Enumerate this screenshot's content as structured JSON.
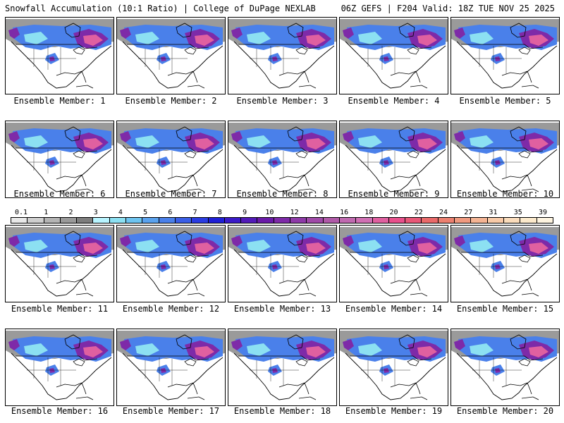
{
  "header": {
    "title_left": "Snowfall Accumulation (10:1 Ratio) | College of DuPage NEXLAB",
    "title_right": "06Z GEFS | F204 Valid: 18Z TUE NOV 25 2025"
  },
  "members": [
    {
      "label": "Ensemble Member: 1"
    },
    {
      "label": "Ensemble Member: 2"
    },
    {
      "label": "Ensemble Member: 3"
    },
    {
      "label": "Ensemble Member: 4"
    },
    {
      "label": "Ensemble Member: 5"
    },
    {
      "label": "Ensemble Member: 6"
    },
    {
      "label": "Ensemble Member: 7"
    },
    {
      "label": "Ensemble Member: 8"
    },
    {
      "label": "Ensemble Member: 9"
    },
    {
      "label": "Ensemble Member: 10"
    },
    {
      "label": "Ensemble Member: 11"
    },
    {
      "label": "Ensemble Member: 12"
    },
    {
      "label": "Ensemble Member: 13"
    },
    {
      "label": "Ensemble Member: 14"
    },
    {
      "label": "Ensemble Member: 15"
    },
    {
      "label": "Ensemble Member: 16"
    },
    {
      "label": "Ensemble Member: 17"
    },
    {
      "label": "Ensemble Member: 18"
    },
    {
      "label": "Ensemble Member: 19"
    },
    {
      "label": "Ensemble Member: 20"
    }
  ],
  "colorbar": {
    "ticks": [
      "0.1",
      "1",
      "2",
      "3",
      "4",
      "5",
      "6",
      "7",
      "8",
      "9",
      "10",
      "12",
      "14",
      "16",
      "18",
      "20",
      "22",
      "24",
      "27",
      "31",
      "35",
      "39"
    ],
    "colors": [
      "#e8e8e8",
      "#cfcfcf",
      "#b4b4b4",
      "#9a9a9a",
      "#7e7e7e",
      "#b8f4ff",
      "#8ce0f2",
      "#6ec4f0",
      "#5aa2ee",
      "#4a80ea",
      "#3a5ee6",
      "#2a3ce2",
      "#1f1fd6",
      "#3a1ac8",
      "#521ab8",
      "#6a1aa8",
      "#7e2aa8",
      "#8e3aa8",
      "#a04aa8",
      "#b05aa8",
      "#c06ab0",
      "#d070b4",
      "#e060a0",
      "#e8508c",
      "#e85878",
      "#ea6a6a",
      "#ec8070",
      "#f09a80",
      "#f4b494",
      "#f8caa8",
      "#fadcbc",
      "#fceacc",
      "#fef4e0"
    ]
  }
}
